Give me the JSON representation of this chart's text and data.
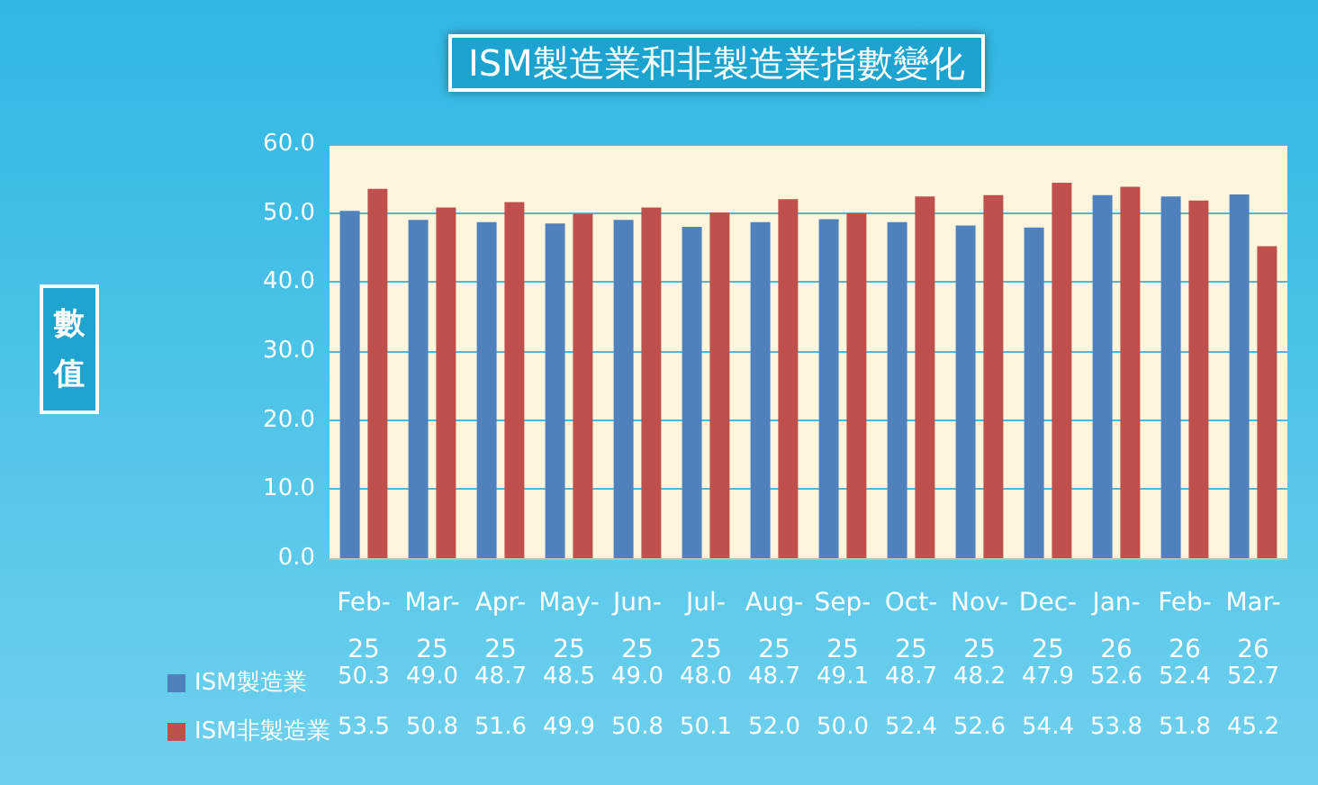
{
  "chart_data": {
    "type": "bar",
    "title": "ISM製造業和非製造業指數變化",
    "annotations": [
      "數值"
    ],
    "categories": [
      "Feb-25",
      "Mar-25",
      "Apr-25",
      "May-25",
      "Jun-25",
      "Jul-25",
      "Aug-25",
      "Sep-25",
      "Oct-25",
      "Nov-25",
      "Dec-25",
      "Jan-26",
      "Feb-26",
      "Mar-26"
    ],
    "series": [
      {
        "name": "ISM製造業",
        "color": "#4f81bd",
        "values": [
          50.3,
          49.0,
          48.7,
          48.5,
          49.0,
          48.0,
          48.7,
          49.1,
          48.7,
          48.2,
          47.9,
          52.6,
          52.4,
          52.7
        ],
        "value_labels": [
          "50.3",
          "49.0",
          "48.7",
          "48.5",
          "49.0",
          "48.0",
          "48.7",
          "49.1",
          "48.7",
          "48.2",
          "47.9",
          "52.6",
          "52.4",
          "52.7"
        ]
      },
      {
        "name": "ISM非製造業",
        "color": "#c0504d",
        "values": [
          53.5,
          50.8,
          51.6,
          49.9,
          50.8,
          50.1,
          52.0,
          50.0,
          52.4,
          52.6,
          54.4,
          53.8,
          51.8,
          45.2
        ],
        "value_labels": [
          "53.5",
          "50.8",
          "51.6",
          "49.9",
          "50.8",
          "50.1",
          "52.0",
          "50.0",
          "52.4",
          "52.6",
          "54.4",
          "53.8",
          "51.8",
          "45.2"
        ]
      }
    ],
    "ylim": [
      0,
      60
    ],
    "yticks": [
      {
        "value": 0,
        "label": "0.0"
      },
      {
        "value": 10,
        "label": "10.0"
      },
      {
        "value": 20,
        "label": "20.0"
      },
      {
        "value": 30,
        "label": "30.0"
      },
      {
        "value": 40,
        "label": "40.0"
      },
      {
        "value": 50,
        "label": "50.0"
      },
      {
        "value": 60,
        "label": "60.0"
      }
    ],
    "grid": "y",
    "legend": "bottom left"
  }
}
